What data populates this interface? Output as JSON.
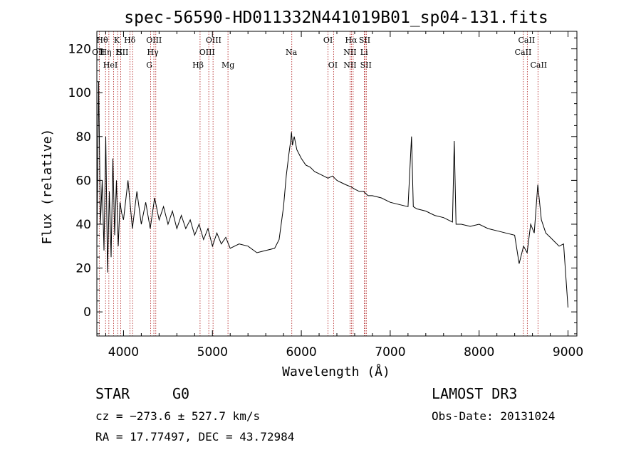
{
  "chart_data": {
    "type": "line",
    "title": "spec-56590-HD011332N441019B01_sp04-131.fits",
    "xlabel": "Wavelength (Å)",
    "ylabel": "Flux (relative)",
    "xlim": [
      3700,
      9100
    ],
    "ylim": [
      -11,
      128
    ],
    "xticks": [
      4000,
      5000,
      6000,
      7000,
      8000,
      9000
    ],
    "yticks": [
      0,
      20,
      40,
      60,
      80,
      100,
      120
    ],
    "grid": false,
    "series": [
      {
        "name": "flux",
        "x": [
          3700,
          3720,
          3740,
          3760,
          3780,
          3800,
          3820,
          3840,
          3860,
          3880,
          3900,
          3920,
          3940,
          3960,
          3980,
          4000,
          4050,
          4100,
          4150,
          4200,
          4250,
          4300,
          4350,
          4400,
          4450,
          4500,
          4550,
          4600,
          4650,
          4700,
          4750,
          4800,
          4850,
          4900,
          4950,
          5000,
          5050,
          5100,
          5150,
          5200,
          5300,
          5400,
          5500,
          5600,
          5700,
          5750,
          5800,
          5830,
          5860,
          5880,
          5890,
          5900,
          5920,
          5950,
          6000,
          6050,
          6100,
          6150,
          6200,
          6250,
          6300,
          6350,
          6400,
          6450,
          6500,
          6560,
          6600,
          6650,
          6700,
          6750,
          6800,
          6900,
          7000,
          7100,
          7200,
          7240,
          7260,
          7300,
          7400,
          7500,
          7600,
          7700,
          7720,
          7740,
          7800,
          7900,
          8000,
          8100,
          8200,
          8300,
          8400,
          8450,
          8500,
          8540,
          8580,
          8620,
          8660,
          8700,
          8750,
          8800,
          8850,
          8900,
          8950,
          9000
        ],
        "y": [
          30,
          105,
          40,
          60,
          28,
          80,
          18,
          55,
          25,
          70,
          35,
          60,
          30,
          50,
          45,
          42,
          60,
          38,
          55,
          40,
          50,
          38,
          52,
          42,
          48,
          40,
          46,
          38,
          44,
          38,
          42,
          35,
          40,
          33,
          38,
          30,
          36,
          31,
          34,
          29,
          31,
          30,
          27,
          28,
          29,
          33,
          48,
          62,
          72,
          78,
          82,
          76,
          80,
          74,
          70,
          67,
          66,
          64,
          63,
          62,
          61,
          62,
          60,
          59,
          58,
          57,
          56,
          55,
          55,
          53,
          53,
          52,
          50,
          49,
          48,
          80,
          48,
          47,
          46,
          44,
          43,
          41,
          78,
          40,
          40,
          39,
          40,
          38,
          37,
          36,
          35,
          22,
          30,
          27,
          40,
          36,
          58,
          42,
          36,
          34,
          32,
          30,
          31,
          2
        ]
      }
    ],
    "lines": [
      {
        "name": "OII",
        "wl": 3727,
        "row": 1,
        "label_wl": 3716
      },
      {
        "name": "Hθ",
        "wl": 3798,
        "row": 0,
        "label_wl": 3760
      },
      {
        "name": "Hη",
        "wl": 3835,
        "row": 1,
        "label_wl": 3800
      },
      {
        "name": "HeI",
        "wl": 3889,
        "row": 2,
        "label_wl": 3852
      },
      {
        "name": "SII",
        "wl": 4072,
        "row": 1,
        "label_wl": 3990
      },
      {
        "name": "K",
        "wl": 3934,
        "row": 0,
        "label_wl": 3924
      },
      {
        "name": "H",
        "wl": 3969,
        "row": 1,
        "label_wl": 3948
      },
      {
        "name": "Hδ",
        "wl": 4102,
        "row": 0,
        "label_wl": 4070
      },
      {
        "name": "G",
        "wl": 4305,
        "row": 2,
        "label_wl": 4290
      },
      {
        "name": "Hγ",
        "wl": 4341,
        "row": 1,
        "label_wl": 4330
      },
      {
        "name": "OIII",
        "wl": 4363,
        "row": 0,
        "label_wl": 4343
      },
      {
        "name": "Hβ",
        "wl": 4861,
        "row": 2,
        "label_wl": 4838
      },
      {
        "name": "OIII",
        "wl": 4959,
        "row": 1,
        "label_wl": 4940
      },
      {
        "name": "OIII",
        "wl": 5007,
        "row": 0,
        "label_wl": 5013
      },
      {
        "name": "Mg",
        "wl": 5175,
        "row": 2,
        "label_wl": 5175
      },
      {
        "name": "Na",
        "wl": 5893,
        "row": 1,
        "label_wl": 5888
      },
      {
        "name": "OI",
        "wl": 6300,
        "row": 0,
        "label_wl": 6300
      },
      {
        "name": "OI",
        "wl": 6363,
        "row": 2,
        "label_wl": 6355
      },
      {
        "name": "NII",
        "wl": 6548,
        "row": 1,
        "label_wl": 6548
      },
      {
        "name": "Hα",
        "wl": 6563,
        "row": 0,
        "label_wl": 6560
      },
      {
        "name": "NII",
        "wl": 6583,
        "row": 2,
        "label_wl": 6548
      },
      {
        "name": "SII",
        "wl": 6716,
        "row": 0,
        "label_wl": 6712
      },
      {
        "name": "Li",
        "wl": 6708,
        "row": 1,
        "label_wl": 6706
      },
      {
        "name": "SII",
        "wl": 6731,
        "row": 2,
        "label_wl": 6726
      },
      {
        "name": "CaII",
        "wl": 8498,
        "row": 0,
        "label_wl": 8534
      },
      {
        "name": "CaII",
        "wl": 8542,
        "row": 1,
        "label_wl": 8495
      },
      {
        "name": "CaII",
        "wl": 8662,
        "row": 2,
        "label_wl": 8670
      }
    ]
  },
  "info": {
    "class": "STAR",
    "subclass": "G0",
    "survey": "LAMOST DR3",
    "cz": "cz = −273.6 ± 527.7 km/s",
    "obs_date": "Obs-Date: 20131024",
    "radec": "RA =  17.77497, DEC =  43.72984"
  }
}
